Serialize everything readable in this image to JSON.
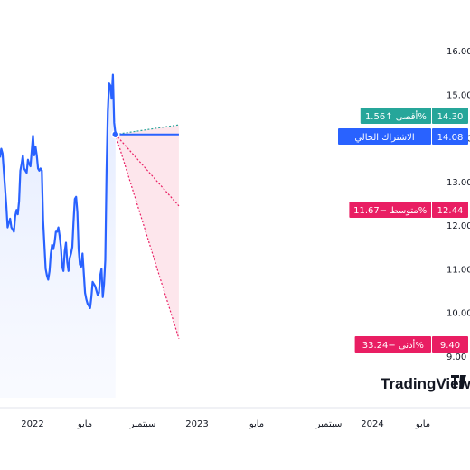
{
  "chart_data": {
    "type": "line",
    "y_ticks": [
      "16.00",
      "15.00",
      "14.00",
      "13.00",
      "12.00",
      "11.00",
      "10.00",
      "9.00"
    ],
    "ylim": [
      9.0,
      16.0
    ],
    "x_ticks": [
      "2022",
      "مايو",
      "سبتمبر",
      "2023",
      "مايو",
      "سبتمبر",
      "2024",
      "مايو"
    ],
    "history": {
      "x": [
        "2021-09-01",
        "2021-09-08",
        "2021-09-15",
        "2021-09-22",
        "2021-09-29",
        "2021-10-06",
        "2021-10-13",
        "2021-10-20",
        "2021-10-27",
        "2021-11-03",
        "2021-11-10",
        "2021-11-17",
        "2021-11-24",
        "2021-12-01",
        "2021-12-08",
        "2021-12-15",
        "2021-12-22",
        "2021-12-29",
        "2022-01-05",
        "2022-01-12",
        "2022-01-19",
        "2022-01-26",
        "2022-02-02",
        "2022-02-09",
        "2022-02-16",
        "2022-02-23",
        "2022-03-02",
        "2022-03-09",
        "2022-03-16",
        "2022-03-23",
        "2022-03-30",
        "2022-04-06",
        "2022-04-13",
        "2022-04-20",
        "2022-04-27",
        "2022-05-04",
        "2022-05-11",
        "2022-05-18",
        "2022-05-25",
        "2022-06-01",
        "2022-06-08",
        "2022-06-15",
        "2022-06-22",
        "2022-06-29",
        "2022-07-06",
        "2022-07-13",
        "2022-07-20",
        "2022-07-27",
        "2022-08-03",
        "2022-08-10",
        "2022-08-17",
        "2022-08-24",
        "2022-08-31",
        "2022-09-07",
        "2022-09-14",
        "2022-09-21",
        "2022-09-28",
        "2022-10-05",
        "2022-10-12",
        "2022-10-19",
        "2022-10-26",
        "2022-11-02",
        "2022-11-09",
        "2022-11-16",
        "2022-11-23",
        "2022-11-30",
        "2022-12-07",
        "2022-12-14",
        "2022-12-21",
        "2022-12-28",
        "2023-01-04",
        "2023-01-11",
        "2023-01-18",
        "2023-01-25",
        "2023-02-01",
        "2023-02-08",
        "2023-02-15",
        "2023-02-22",
        "2023-03-01",
        "2023-03-08",
        "2023-03-15",
        "2023-03-22",
        "2023-03-29",
        "2023-04-05",
        "2023-04-12",
        "2023-04-19",
        "2023-04-26",
        "2023-05-03",
        "2023-05-10",
        "2023-05-17",
        "2023-05-24"
      ],
      "values": [
        13.55,
        13.75,
        13.65,
        13.25,
        12.85,
        12.45,
        11.95,
        12.05,
        12.15,
        11.95,
        11.9,
        11.85,
        12.2,
        12.35,
        12.25,
        12.55,
        13.25,
        13.4,
        13.6,
        13.3,
        13.25,
        13.2,
        13.5,
        13.4,
        13.35,
        13.7,
        14.05,
        13.6,
        13.8,
        13.6,
        13.3,
        13.25,
        13.3,
        13.25,
        12.1,
        11.55,
        11.0,
        10.85,
        10.75,
        10.95,
        11.35,
        11.55,
        11.45,
        11.6,
        11.85,
        11.85,
        11.95,
        11.75,
        11.5,
        11.05,
        10.95,
        11.4,
        11.6,
        11.15,
        10.95,
        11.25,
        11.35,
        11.5,
        12.1,
        12.6,
        12.65,
        12.3,
        11.45,
        11.1,
        11.05,
        11.35,
        10.9,
        10.45,
        10.3,
        10.2,
        10.15,
        10.1,
        10.35,
        10.7,
        10.65,
        10.6,
        10.5,
        10.4,
        10.45,
        10.85,
        11.0,
        10.35,
        10.65,
        11.2,
        13.25,
        14.6,
        15.25,
        15.2,
        14.9,
        15.45,
        14.35
      ]
    },
    "last_value": 14.08,
    "forecast": {
      "start": "2023-05-31",
      "end": "2024-05-15",
      "high": {
        "value": 14.3,
        "label": "أقصى ↑1.56%"
      },
      "current": {
        "value": 14.08,
        "label": "الاشتراك الحالي"
      },
      "average": {
        "value": 12.44,
        "label": "متوسط −11.67%"
      },
      "low": {
        "value": 9.4,
        "label": "أدنى −33.24%"
      }
    },
    "colors": {
      "line": "#2962ff",
      "area": "#e3ebff",
      "high": "#26a69a",
      "current": "#2962ff",
      "average": "#e91e63",
      "low": "#e91e63",
      "forecast_fill": "#fde3ea"
    },
    "logo": "TradingView"
  }
}
